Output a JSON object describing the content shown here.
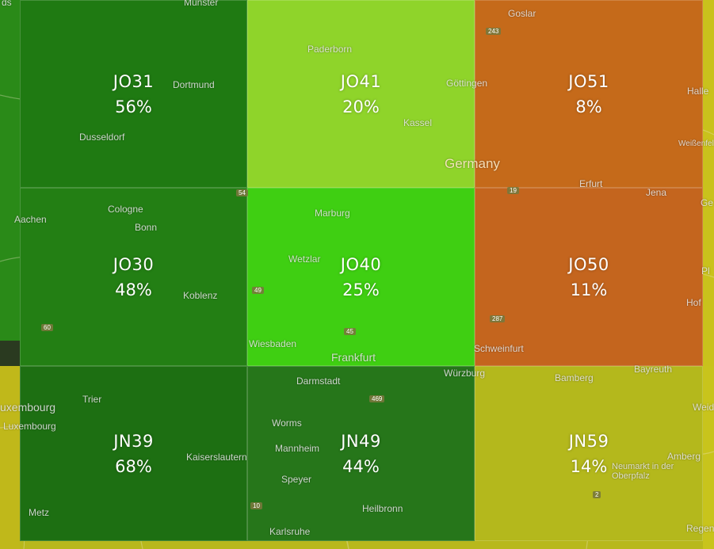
{
  "grid_cells": [
    {
      "locator": "JO31",
      "percent": "56%",
      "color": "#1f7a12"
    },
    {
      "locator": "JO41",
      "percent": "20%",
      "color": "#8fd42a"
    },
    {
      "locator": "JO51",
      "percent": "8%",
      "color": "#c56a1a"
    },
    {
      "locator": "JO30",
      "percent": "48%",
      "color": "#237f14"
    },
    {
      "locator": "JO40",
      "percent": "25%",
      "color": "#3fcf12"
    },
    {
      "locator": "JO50",
      "percent": "11%",
      "color": "#c4651e"
    },
    {
      "locator": "JN39",
      "percent": "68%",
      "color": "#1d6f12"
    },
    {
      "locator": "JN49",
      "percent": "44%",
      "color": "#26761a"
    },
    {
      "locator": "JN59",
      "percent": "14%",
      "color": "#b4b81c"
    }
  ],
  "edge_tiles": [
    {
      "id": "top-left-edge",
      "color": "#2a8a18"
    },
    {
      "id": "left-edge-bottom",
      "color": "#c0b81a"
    },
    {
      "id": "right-edge-top",
      "color": "#c9c21c"
    },
    {
      "id": "right-edge-bottom",
      "color": "#c8c41c"
    },
    {
      "id": "bottom-edge",
      "color": "#b8b81c"
    }
  ],
  "city_labels": [
    {
      "name": "Münster",
      "kind": "small"
    },
    {
      "name": "ds",
      "kind": "small"
    },
    {
      "name": "Dortmund",
      "kind": "small"
    },
    {
      "name": "Dusseldorf",
      "kind": "small"
    },
    {
      "name": "Paderborn",
      "kind": "small"
    },
    {
      "name": "Göttingen",
      "kind": "small"
    },
    {
      "name": "Kassel",
      "kind": "small"
    },
    {
      "name": "Goslar",
      "kind": "small"
    },
    {
      "name": "Halle",
      "kind": "small"
    },
    {
      "name": "Weißenfel",
      "kind": "small"
    },
    {
      "name": "Germany",
      "kind": "country"
    },
    {
      "name": "Aachen",
      "kind": "small"
    },
    {
      "name": "Cologne",
      "kind": "small"
    },
    {
      "name": "Bonn",
      "kind": "small"
    },
    {
      "name": "Marburg",
      "kind": "small"
    },
    {
      "name": "Erfurt",
      "kind": "small"
    },
    {
      "name": "Jena",
      "kind": "small"
    },
    {
      "name": "Ge",
      "kind": "small"
    },
    {
      "name": "Wetzlar",
      "kind": "small"
    },
    {
      "name": "Koblenz",
      "kind": "small"
    },
    {
      "name": "Pl",
      "kind": "small"
    },
    {
      "name": "Hof",
      "kind": "small"
    },
    {
      "name": "Wiesbaden",
      "kind": "small"
    },
    {
      "name": "Frankfurt",
      "kind": "big"
    },
    {
      "name": "Schweinfurt",
      "kind": "small"
    },
    {
      "name": "Bayreuth",
      "kind": "small"
    },
    {
      "name": "uxembourg",
      "kind": "big"
    },
    {
      "name": "Luxembourg",
      "kind": "small"
    },
    {
      "name": "Trier",
      "kind": "small"
    },
    {
      "name": "Darmstadt",
      "kind": "small"
    },
    {
      "name": "Würzburg",
      "kind": "small"
    },
    {
      "name": "Bamberg",
      "kind": "small"
    },
    {
      "name": "Weid",
      "kind": "small"
    },
    {
      "name": "Worms",
      "kind": "small"
    },
    {
      "name": "Mannheim",
      "kind": "small"
    },
    {
      "name": "Kaiserslautern",
      "kind": "small"
    },
    {
      "name": "Speyer",
      "kind": "small"
    },
    {
      "name": "Amberg",
      "kind": "small"
    },
    {
      "name": "Neumarkt in der Oberpfalz",
      "kind": "small"
    },
    {
      "name": "Metz",
      "kind": "small"
    },
    {
      "name": "Heilbronn",
      "kind": "small"
    },
    {
      "name": "Karlsruhe",
      "kind": "small"
    },
    {
      "name": "Regen",
      "kind": "small"
    }
  ],
  "road_shields": [
    "243",
    "54",
    "19",
    "49",
    "45",
    "60",
    "287",
    "469",
    "10",
    "2"
  ]
}
